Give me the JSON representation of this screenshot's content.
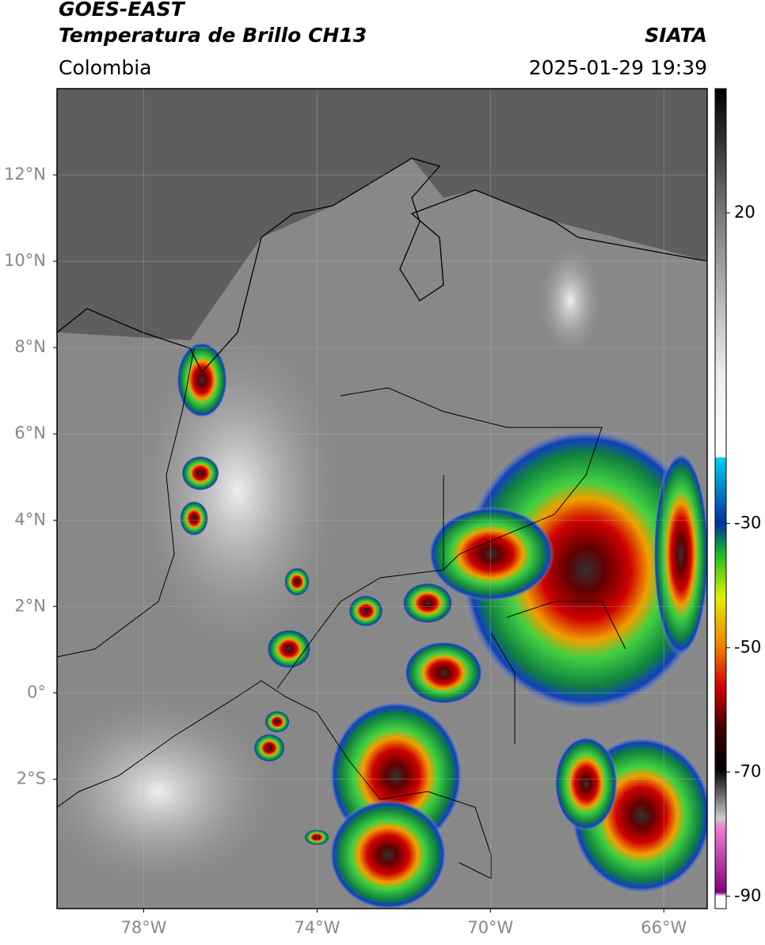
{
  "header": {
    "title": "GOES-EAST",
    "subtitle": "Temperatura de Brillo CH13",
    "source": "SIATA",
    "region": "Colombia",
    "timestamp": "2025-01-29 19:39"
  },
  "chart_data": {
    "type": "map",
    "xlim": [
      -80,
      -65
    ],
    "ylim": [
      -5,
      14
    ],
    "xticks": [
      {
        "value": -78,
        "label": "78°W"
      },
      {
        "value": -74,
        "label": "74°W"
      },
      {
        "value": -70,
        "label": "70°W"
      },
      {
        "value": -66,
        "label": "66°W"
      }
    ],
    "yticks": [
      {
        "value": 12,
        "label": "12°N"
      },
      {
        "value": 10,
        "label": "10°N"
      },
      {
        "value": 8,
        "label": "8°N"
      },
      {
        "value": 6,
        "label": "6°N"
      },
      {
        "value": 4,
        "label": "4°N"
      },
      {
        "value": 2,
        "label": "2°N"
      },
      {
        "value": 0,
        "label": "0°"
      },
      {
        "value": -2,
        "label": "2°S"
      }
    ],
    "grid": true,
    "colorbar": {
      "lim": [
        -92,
        40
      ],
      "ticks": [
        20,
        -30,
        -50,
        -70,
        -90
      ]
    }
  }
}
